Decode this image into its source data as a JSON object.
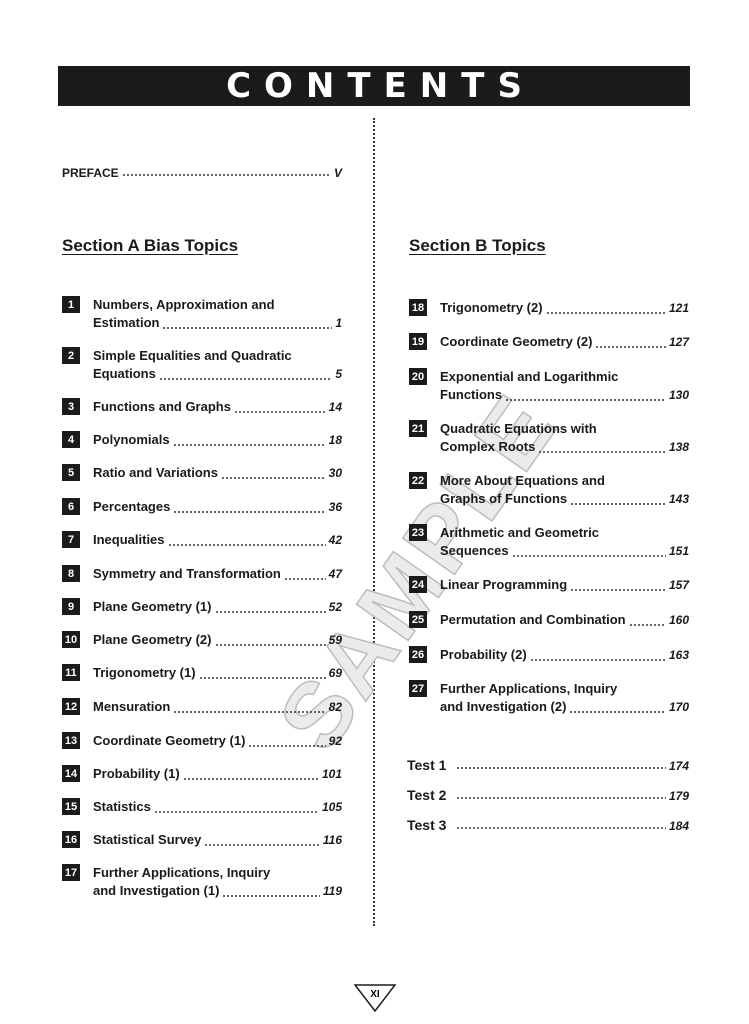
{
  "title": "CONTENTS",
  "preface": {
    "label": "PREFACE",
    "page": "V"
  },
  "section_a": {
    "heading": "Section A Bias Topics",
    "entries": [
      {
        "num": "1",
        "lines": [
          "Numbers, Approximation and",
          "Estimation"
        ],
        "page": "1"
      },
      {
        "num": "2",
        "lines": [
          "Simple Equalities and Quadratic",
          "Equations"
        ],
        "page": "5"
      },
      {
        "num": "3",
        "lines": [
          "Functions and Graphs"
        ],
        "page": "14"
      },
      {
        "num": "4",
        "lines": [
          "Polynomials"
        ],
        "page": "18"
      },
      {
        "num": "5",
        "lines": [
          "Ratio and Variations"
        ],
        "page": "30"
      },
      {
        "num": "6",
        "lines": [
          "Percentages"
        ],
        "page": "36"
      },
      {
        "num": "7",
        "lines": [
          "Inequalities"
        ],
        "page": "42"
      },
      {
        "num": "8",
        "lines": [
          "Symmetry and Transformation"
        ],
        "page": "47"
      },
      {
        "num": "9",
        "lines": [
          "Plane Geometry (1)"
        ],
        "page": "52"
      },
      {
        "num": "10",
        "lines": [
          "Plane Geometry (2)"
        ],
        "page": "59"
      },
      {
        "num": "11",
        "lines": [
          "Trigonometry (1)"
        ],
        "page": "69"
      },
      {
        "num": "12",
        "lines": [
          "Mensuration"
        ],
        "page": "82"
      },
      {
        "num": "13",
        "lines": [
          "Coordinate Geometry (1)"
        ],
        "page": "92"
      },
      {
        "num": "14",
        "lines": [
          "Probability (1)"
        ],
        "page": "101"
      },
      {
        "num": "15",
        "lines": [
          "Statistics"
        ],
        "page": "105"
      },
      {
        "num": "16",
        "lines": [
          "Statistical Survey"
        ],
        "page": "116"
      },
      {
        "num": "17",
        "lines": [
          "Further Applications, Inquiry",
          "and Investigation (1)"
        ],
        "page": "119"
      }
    ]
  },
  "section_b": {
    "heading": "Section B Topics",
    "entries": [
      {
        "num": "18",
        "lines": [
          "Trigonometry (2)"
        ],
        "page": "121"
      },
      {
        "num": "19",
        "lines": [
          "Coordinate Geometry (2)"
        ],
        "page": "127"
      },
      {
        "num": "20",
        "lines": [
          "Exponential and Logarithmic",
          "Functions"
        ],
        "page": "130"
      },
      {
        "num": "21",
        "lines": [
          "Quadratic Equations with",
          "Complex Roots"
        ],
        "page": "138"
      },
      {
        "num": "22",
        "lines": [
          "More About Equations and",
          "Graphs of Functions"
        ],
        "page": "143"
      },
      {
        "num": "23",
        "lines": [
          "Arithmetic and Geometric",
          "Sequences"
        ],
        "page": "151"
      },
      {
        "num": "24",
        "lines": [
          "Linear Programming"
        ],
        "page": "157"
      },
      {
        "num": "25",
        "lines": [
          "Permutation and Combination"
        ],
        "page": "160"
      },
      {
        "num": "26",
        "lines": [
          "Probability (2)"
        ],
        "page": "163"
      },
      {
        "num": "27",
        "lines": [
          "Further Applications, Inquiry",
          "and Investigation (2)"
        ],
        "page": "170"
      }
    ],
    "tests": [
      {
        "label": "Test 1",
        "page": "174"
      },
      {
        "label": "Test 2",
        "page": "179"
      },
      {
        "label": "Test 3",
        "page": "184"
      }
    ]
  },
  "watermark": "SAMPLE",
  "page_number": "XI"
}
